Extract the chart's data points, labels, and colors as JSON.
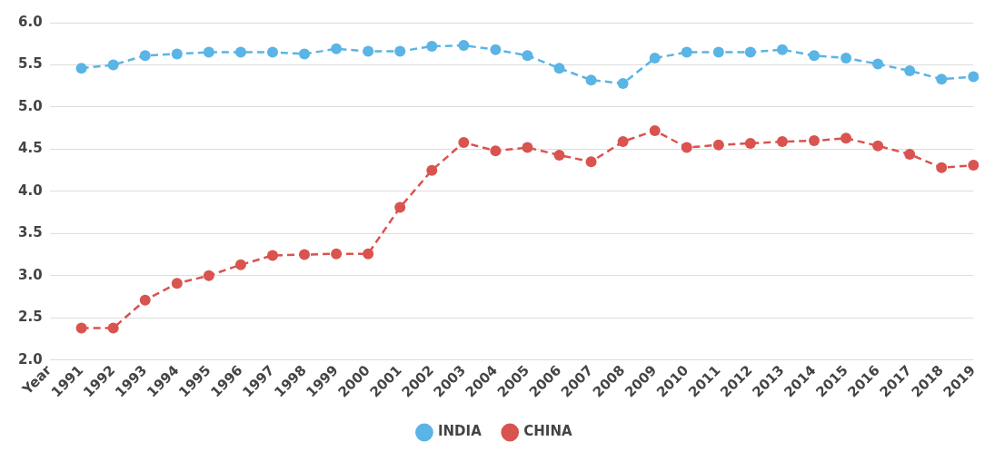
{
  "chart_data": {
    "type": "line",
    "categories": [
      "Year",
      "1991",
      "1992",
      "1993",
      "1994",
      "1995",
      "1996",
      "1997",
      "1998",
      "1999",
      "2000",
      "2001",
      "2002",
      "2003",
      "2004",
      "2005",
      "2006",
      "2007",
      "2008",
      "2009",
      "2010",
      "2011",
      "2012",
      "2013",
      "2014",
      "2015",
      "2016",
      "2017",
      "2018",
      "2019"
    ],
    "series": [
      {
        "name": "INDIA",
        "color": "#5ab4e5",
        "values": [
          null,
          5.46,
          5.5,
          5.61,
          5.63,
          5.65,
          5.65,
          5.65,
          5.63,
          5.69,
          5.66,
          5.66,
          5.72,
          5.73,
          5.68,
          5.61,
          5.46,
          5.32,
          5.28,
          5.58,
          5.65,
          5.65,
          5.65,
          5.68,
          5.61,
          5.58,
          5.51,
          5.43,
          5.33,
          5.36
        ]
      },
      {
        "name": "CHINA",
        "color": "#d9534f",
        "values": [
          null,
          2.38,
          2.38,
          2.71,
          2.91,
          3.0,
          3.13,
          3.24,
          3.25,
          3.26,
          3.26,
          3.81,
          4.25,
          4.58,
          4.48,
          4.52,
          4.43,
          4.35,
          4.59,
          4.72,
          4.52,
          4.55,
          4.57,
          4.59,
          4.6,
          4.63,
          4.54,
          4.44,
          4.28,
          4.31
        ]
      }
    ],
    "ylim": [
      2.0,
      6.0
    ],
    "yticks": [
      {
        "value": 2,
        "label": "2.0"
      },
      {
        "value": 2.5,
        "label": "2.5"
      },
      {
        "value": 3,
        "label": "3.0"
      },
      {
        "value": 3.5,
        "label": "3.5"
      },
      {
        "value": 4,
        "label": "4.0"
      },
      {
        "value": 4.5,
        "label": "4.5"
      },
      {
        "value": 5,
        "label": "5.0"
      },
      {
        "value": 5.5,
        "label": "5.5"
      },
      {
        "value": 6,
        "label": "6.0"
      }
    ],
    "grid": "y",
    "legend": "bottom",
    "marker": "circle",
    "line_style": "dashed"
  }
}
